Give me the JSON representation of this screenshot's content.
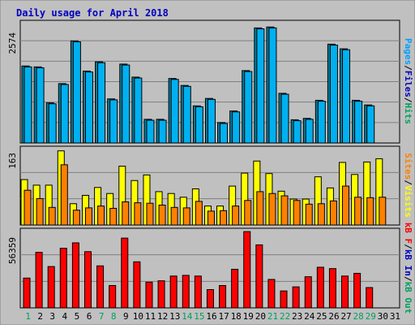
{
  "title": "Daily usage for April 2018",
  "colors": {
    "background": "#c0c0c0",
    "title": "#0000c0",
    "hits": "#00a0c0",
    "files": "#00a0ff",
    "pages": "#00a0ff",
    "visits": "#ffff00",
    "sites": "#ff8000",
    "kbin": "#0000c0",
    "kbout": "#00a060",
    "kbf": "#ff0000",
    "weekend_day": "#00a060",
    "weekday_day": "#000000"
  },
  "chart_data": [
    {
      "type": "bar",
      "panel": "top",
      "ymax_label": "2574",
      "ymax": 2574,
      "legend": [
        {
          "text": "Pages",
          "color": "#00a0ff"
        },
        {
          "text": "/",
          "color": "#000000"
        },
        {
          "text": "Files",
          "color": "#0000c0"
        },
        {
          "text": "/",
          "color": "#000000"
        },
        {
          "text": "Hits",
          "color": "#00a060"
        }
      ],
      "categories": [
        "1",
        "2",
        "3",
        "4",
        "5",
        "6",
        "7",
        "8",
        "9",
        "10",
        "11",
        "12",
        "13",
        "14",
        "15",
        "16",
        "17",
        "18",
        "19",
        "20",
        "21",
        "22",
        "23",
        "24",
        "25",
        "26",
        "27",
        "28",
        "29",
        "30",
        "31"
      ],
      "series": [
        {
          "name": "Hits",
          "values": [
            1660,
            1640,
            865,
            1280,
            2200,
            1550,
            1750,
            950,
            1700,
            1420,
            510,
            510,
            1390,
            1240,
            800,
            960,
            440,
            690,
            1560,
            2480,
            2500,
            1070,
            500,
            530,
            920,
            2130,
            2030,
            920,
            820,
            null,
            null
          ]
        },
        {
          "name": "Files",
          "values": [
            1640,
            1620,
            845,
            1260,
            2180,
            1530,
            1730,
            930,
            1680,
            1400,
            490,
            490,
            1370,
            1220,
            780,
            940,
            420,
            670,
            1540,
            2460,
            2480,
            1050,
            480,
            510,
            900,
            2110,
            2010,
            900,
            800,
            null,
            null
          ]
        }
      ]
    },
    {
      "type": "bar",
      "panel": "middle",
      "ymax_label": "163",
      "ymax": 163,
      "legend": [
        {
          "text": "Sites",
          "color": "#ff8000"
        },
        {
          "text": "/",
          "color": "#000000"
        },
        {
          "text": "Visits",
          "color": "#ffff00"
        }
      ],
      "categories": [
        "1",
        "2",
        "3",
        "4",
        "5",
        "6",
        "7",
        "8",
        "9",
        "10",
        "11",
        "12",
        "13",
        "14",
        "15",
        "16",
        "17",
        "18",
        "19",
        "20",
        "21",
        "22",
        "23",
        "24",
        "25",
        "26",
        "27",
        "28",
        "29",
        "30",
        "31"
      ],
      "series": [
        {
          "name": "Visits",
          "values": [
            98,
            86,
            86,
            160,
            46,
            64,
            81,
            68,
            127,
            96,
            108,
            72,
            68,
            60,
            78,
            41,
            41,
            84,
            112,
            138,
            111,
            73,
            56,
            56,
            104,
            80,
            135,
            109,
            136,
            143,
            null
          ]
        },
        {
          "name": "Sites",
          "values": [
            75,
            57,
            38,
            130,
            32,
            37,
            41,
            36,
            50,
            48,
            47,
            43,
            38,
            37,
            51,
            30,
            31,
            41,
            53,
            72,
            68,
            63,
            53,
            45,
            46,
            52,
            84,
            60,
            59,
            60,
            null
          ]
        }
      ]
    },
    {
      "type": "bar",
      "panel": "bottom",
      "ymax_label": "56359",
      "ymax": 56359,
      "legend": [
        {
          "text": "kB F",
          "color": "#ff0000"
        },
        {
          "text": "/",
          "color": "#000000"
        },
        {
          "text": "kB In",
          "color": "#0000c0"
        },
        {
          "text": "/",
          "color": "#000000"
        },
        {
          "text": "kB Out",
          "color": "#00a060"
        }
      ],
      "categories": [
        "1",
        "2",
        "3",
        "4",
        "5",
        "6",
        "7",
        "8",
        "9",
        "10",
        "11",
        "12",
        "13",
        "14",
        "15",
        "16",
        "17",
        "18",
        "19",
        "20",
        "21",
        "22",
        "23",
        "24",
        "25",
        "26",
        "27",
        "28",
        "29",
        "30",
        "31"
      ],
      "series": [
        {
          "name": "kB F",
          "values": [
            22000,
            41000,
            30500,
            44000,
            48000,
            41500,
            31000,
            16500,
            51500,
            34000,
            19000,
            20000,
            23500,
            24000,
            23500,
            13500,
            16500,
            28500,
            56300,
            46500,
            21000,
            12500,
            15500,
            23000,
            30000,
            29000,
            23500,
            25500,
            15000,
            null,
            null
          ]
        }
      ]
    }
  ]
}
